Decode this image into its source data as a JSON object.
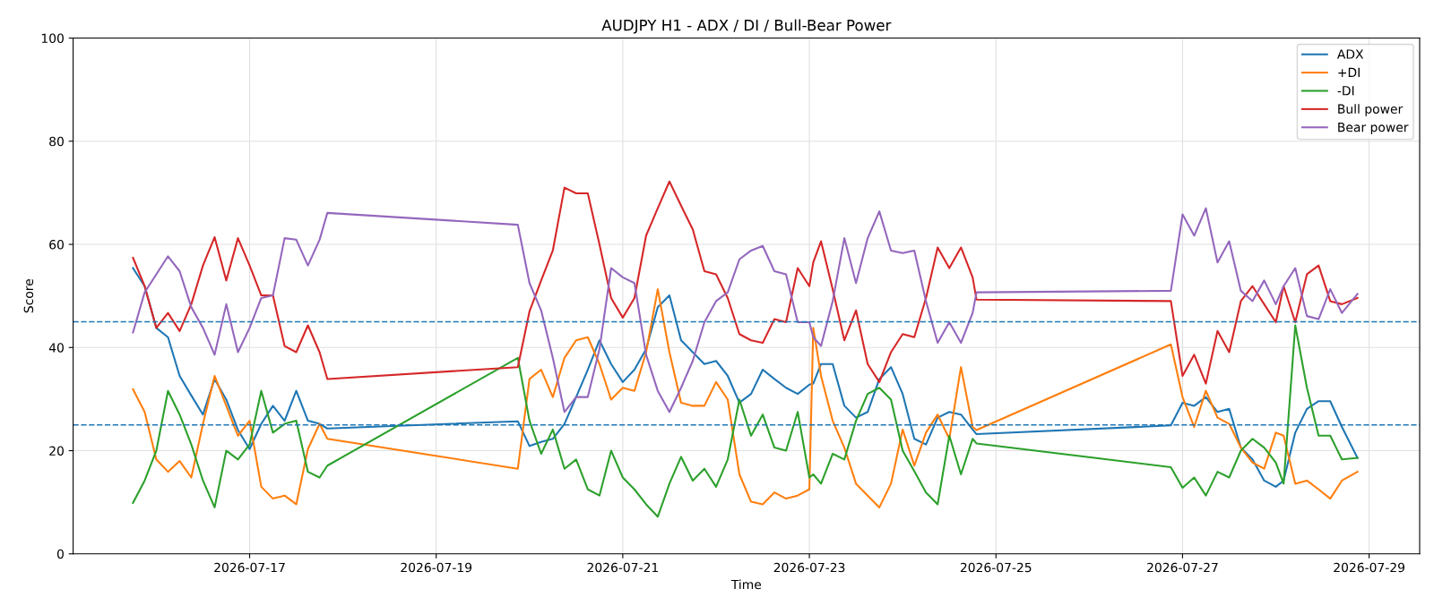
{
  "chart_data": {
    "type": "line",
    "title": "AUDJPY H1 - ADX / DI / Bull-Bear Power",
    "xlabel": "Time",
    "ylabel": "Score",
    "x": [
      "2026-07-15T18:00",
      "2026-07-15T21:00",
      "2026-07-16T00:00",
      "2026-07-16T03:00",
      "2026-07-16T06:00",
      "2026-07-16T09:00",
      "2026-07-16T12:00",
      "2026-07-16T15:00",
      "2026-07-16T18:00",
      "2026-07-16T21:00",
      "2026-07-17T00:00",
      "2026-07-17T03:00",
      "2026-07-17T06:00",
      "2026-07-17T09:00",
      "2026-07-17T12:00",
      "2026-07-17T15:00",
      "2026-07-17T18:00",
      "2026-07-17T20:00",
      "2026-07-19T21:00",
      "2026-07-20T00:00",
      "2026-07-20T03:00",
      "2026-07-20T06:00",
      "2026-07-20T09:00",
      "2026-07-20T12:00",
      "2026-07-20T15:00",
      "2026-07-20T18:00",
      "2026-07-20T21:00",
      "2026-07-21T00:00",
      "2026-07-21T03:00",
      "2026-07-21T06:00",
      "2026-07-21T09:00",
      "2026-07-21T12:00",
      "2026-07-21T15:00",
      "2026-07-21T18:00",
      "2026-07-21T21:00",
      "2026-07-22T00:00",
      "2026-07-22T03:00",
      "2026-07-22T06:00",
      "2026-07-22T09:00",
      "2026-07-22T12:00",
      "2026-07-22T15:00",
      "2026-07-22T18:00",
      "2026-07-22T21:00",
      "2026-07-23T00:00",
      "2026-07-23T01:00",
      "2026-07-23T03:00",
      "2026-07-23T06:00",
      "2026-07-23T09:00",
      "2026-07-23T12:00",
      "2026-07-23T15:00",
      "2026-07-23T18:00",
      "2026-07-23T21:00",
      "2026-07-24T00:00",
      "2026-07-24T03:00",
      "2026-07-24T06:00",
      "2026-07-24T09:00",
      "2026-07-24T12:00",
      "2026-07-24T15:00",
      "2026-07-24T18:00",
      "2026-07-24T19:00",
      "2026-07-26T21:00",
      "2026-07-27T00:00",
      "2026-07-27T03:00",
      "2026-07-27T06:00",
      "2026-07-27T09:00",
      "2026-07-27T12:00",
      "2026-07-27T15:00",
      "2026-07-27T18:00",
      "2026-07-27T21:00",
      "2026-07-28T00:00",
      "2026-07-28T02:00",
      "2026-07-28T05:00",
      "2026-07-28T08:00",
      "2026-07-28T11:00",
      "2026-07-28T14:00",
      "2026-07-28T17:00",
      "2026-07-28T21:00"
    ],
    "series": [
      {
        "name": "ADX",
        "color": "#1f77b4",
        "values": [
          55.4,
          51.9,
          43.8,
          42.0,
          34.5,
          30.7,
          27.0,
          33.9,
          29.9,
          24.0,
          20.3,
          25.2,
          28.7,
          25.8,
          31.6,
          25.8,
          25.2,
          24.3,
          25.7,
          20.9,
          21.7,
          22.3,
          25.2,
          30.4,
          35.7,
          41.4,
          36.8,
          33.3,
          35.7,
          39.7,
          47.8,
          50.1,
          41.4,
          39.1,
          36.8,
          37.4,
          34.5,
          29.3,
          31.0,
          35.7,
          33.9,
          32.2,
          31.0,
          32.8,
          33.0,
          36.8,
          36.8,
          28.7,
          26.4,
          27.5,
          33.9,
          36.2,
          31.0,
          22.3,
          21.2,
          26.4,
          27.5,
          27.0,
          24.1,
          23.2,
          24.9,
          29.3,
          28.7,
          30.4,
          27.5,
          28.1,
          20.6,
          18.3,
          14.2,
          13.0,
          14.2,
          23.5,
          28.1,
          29.6,
          29.6,
          24.6,
          18.6
        ]
      },
      {
        "name": "+DI",
        "color": "#ff7f0e",
        "values": [
          31.9,
          27.5,
          18.3,
          15.9,
          18.0,
          14.8,
          25.2,
          34.5,
          28.7,
          22.9,
          25.8,
          13.0,
          10.7,
          11.3,
          9.6,
          20.3,
          25.2,
          22.3,
          16.5,
          33.9,
          35.7,
          30.4,
          38.0,
          41.4,
          42.0,
          36.8,
          29.9,
          32.2,
          31.6,
          39.1,
          51.3,
          39.1,
          29.3,
          28.7,
          28.7,
          33.3,
          29.9,
          15.4,
          10.1,
          9.6,
          11.9,
          10.7,
          11.3,
          12.5,
          43.8,
          34.5,
          25.8,
          20.6,
          13.6,
          11.3,
          9.0,
          13.6,
          24.1,
          17.1,
          23.5,
          27.0,
          22.3,
          36.2,
          24.6,
          24.0,
          40.6,
          30.4,
          24.6,
          31.6,
          26.4,
          25.2,
          20.6,
          17.7,
          16.5,
          23.5,
          22.9,
          13.6,
          14.2,
          12.5,
          10.7,
          14.2,
          15.9
        ]
      },
      {
        "name": "-DI",
        "color": "#2ca02c",
        "values": [
          9.9,
          14.2,
          20.0,
          31.6,
          27.0,
          21.2,
          14.2,
          9.0,
          20.0,
          18.3,
          21.2,
          31.6,
          23.5,
          25.2,
          25.8,
          15.9,
          14.8,
          17.1,
          38.0,
          25.8,
          19.4,
          24.1,
          16.5,
          18.3,
          12.5,
          11.3,
          20.0,
          14.8,
          12.5,
          9.6,
          7.2,
          13.6,
          18.8,
          14.2,
          16.5,
          13.0,
          18.3,
          29.9,
          22.9,
          27.0,
          20.6,
          20.0,
          27.5,
          14.8,
          15.4,
          13.6,
          19.4,
          18.3,
          25.8,
          31.0,
          32.2,
          29.9,
          20.0,
          16.0,
          11.9,
          9.6,
          22.9,
          15.4,
          22.3,
          21.4,
          16.8,
          12.8,
          14.8,
          11.3,
          15.9,
          14.8,
          20.0,
          22.3,
          20.6,
          17.7,
          13.6,
          44.3,
          32.2,
          22.9,
          22.9,
          18.3,
          18.6
        ]
      },
      {
        "name": "Bull power",
        "color": "#d62728",
        "values": [
          57.4,
          51.9,
          43.8,
          46.7,
          43.2,
          48.4,
          55.9,
          61.4,
          53.0,
          61.2,
          55.9,
          50.1,
          50.1,
          40.3,
          39.1,
          44.3,
          39.1,
          33.9,
          36.2,
          47.0,
          53.0,
          58.8,
          71.0,
          69.9,
          69.9,
          60.0,
          49.6,
          45.8,
          49.6,
          61.7,
          67.0,
          72.2,
          67.5,
          62.9,
          54.8,
          54.2,
          49.6,
          42.6,
          41.4,
          40.9,
          45.5,
          44.9,
          55.4,
          51.9,
          56.5,
          60.6,
          51.3,
          41.4,
          47.2,
          36.8,
          33.3,
          39.1,
          42.6,
          42.0,
          49.6,
          59.4,
          55.4,
          59.4,
          53.6,
          49.3,
          49.0,
          34.5,
          38.6,
          33.0,
          43.2,
          39.1,
          49.0,
          51.9,
          48.4,
          44.9,
          51.9,
          44.9,
          54.2,
          55.9,
          49.0,
          48.4,
          49.6
        ]
      },
      {
        "name": "Bear power",
        "color": "#9467bd",
        "values": [
          42.9,
          50.7,
          54.2,
          57.7,
          54.8,
          47.8,
          43.8,
          38.6,
          48.4,
          39.1,
          43.8,
          49.6,
          50.1,
          61.2,
          60.9,
          55.9,
          60.9,
          66.1,
          63.8,
          52.5,
          47.2,
          38.0,
          27.5,
          30.4,
          30.4,
          39.7,
          55.4,
          53.6,
          52.5,
          38.6,
          31.6,
          27.5,
          32.2,
          37.4,
          44.9,
          49.0,
          50.7,
          57.1,
          58.8,
          59.7,
          54.8,
          54.2,
          44.9,
          44.9,
          42.0,
          40.3,
          49.0,
          61.2,
          52.5,
          61.2,
          66.4,
          58.8,
          58.3,
          58.8,
          49.0,
          40.9,
          44.9,
          40.9,
          46.7,
          50.7,
          51.0,
          65.8,
          61.7,
          67.0,
          56.5,
          60.6,
          51.0,
          49.0,
          53.0,
          48.4,
          51.9,
          55.4,
          46.1,
          45.5,
          51.3,
          46.7,
          50.4
        ]
      }
    ],
    "ref_lines": [
      {
        "axis": "y",
        "value": 45,
        "color": "#1f77b4",
        "line_style": "dashed"
      },
      {
        "axis": "y",
        "value": 25,
        "color": "#1f77b4",
        "line_style": "dashed"
      }
    ],
    "xlim": [
      "2026-07-15T02:36",
      "2026-07-29T13:00"
    ],
    "xticks": [
      {
        "value": "2026-07-17",
        "label": "2026-07-17"
      },
      {
        "value": "2026-07-19",
        "label": "2026-07-19"
      },
      {
        "value": "2026-07-21",
        "label": "2026-07-21"
      },
      {
        "value": "2026-07-23",
        "label": "2026-07-23"
      },
      {
        "value": "2026-07-25",
        "label": "2026-07-25"
      },
      {
        "value": "2026-07-27",
        "label": "2026-07-27"
      },
      {
        "value": "2026-07-29",
        "label": "2026-07-29"
      }
    ],
    "ylim": [
      0,
      100
    ],
    "yticks": [
      0,
      20,
      40,
      60,
      80,
      100
    ],
    "grid": true,
    "legend": "top right",
    "marker": "none",
    "line_style": "solid"
  }
}
